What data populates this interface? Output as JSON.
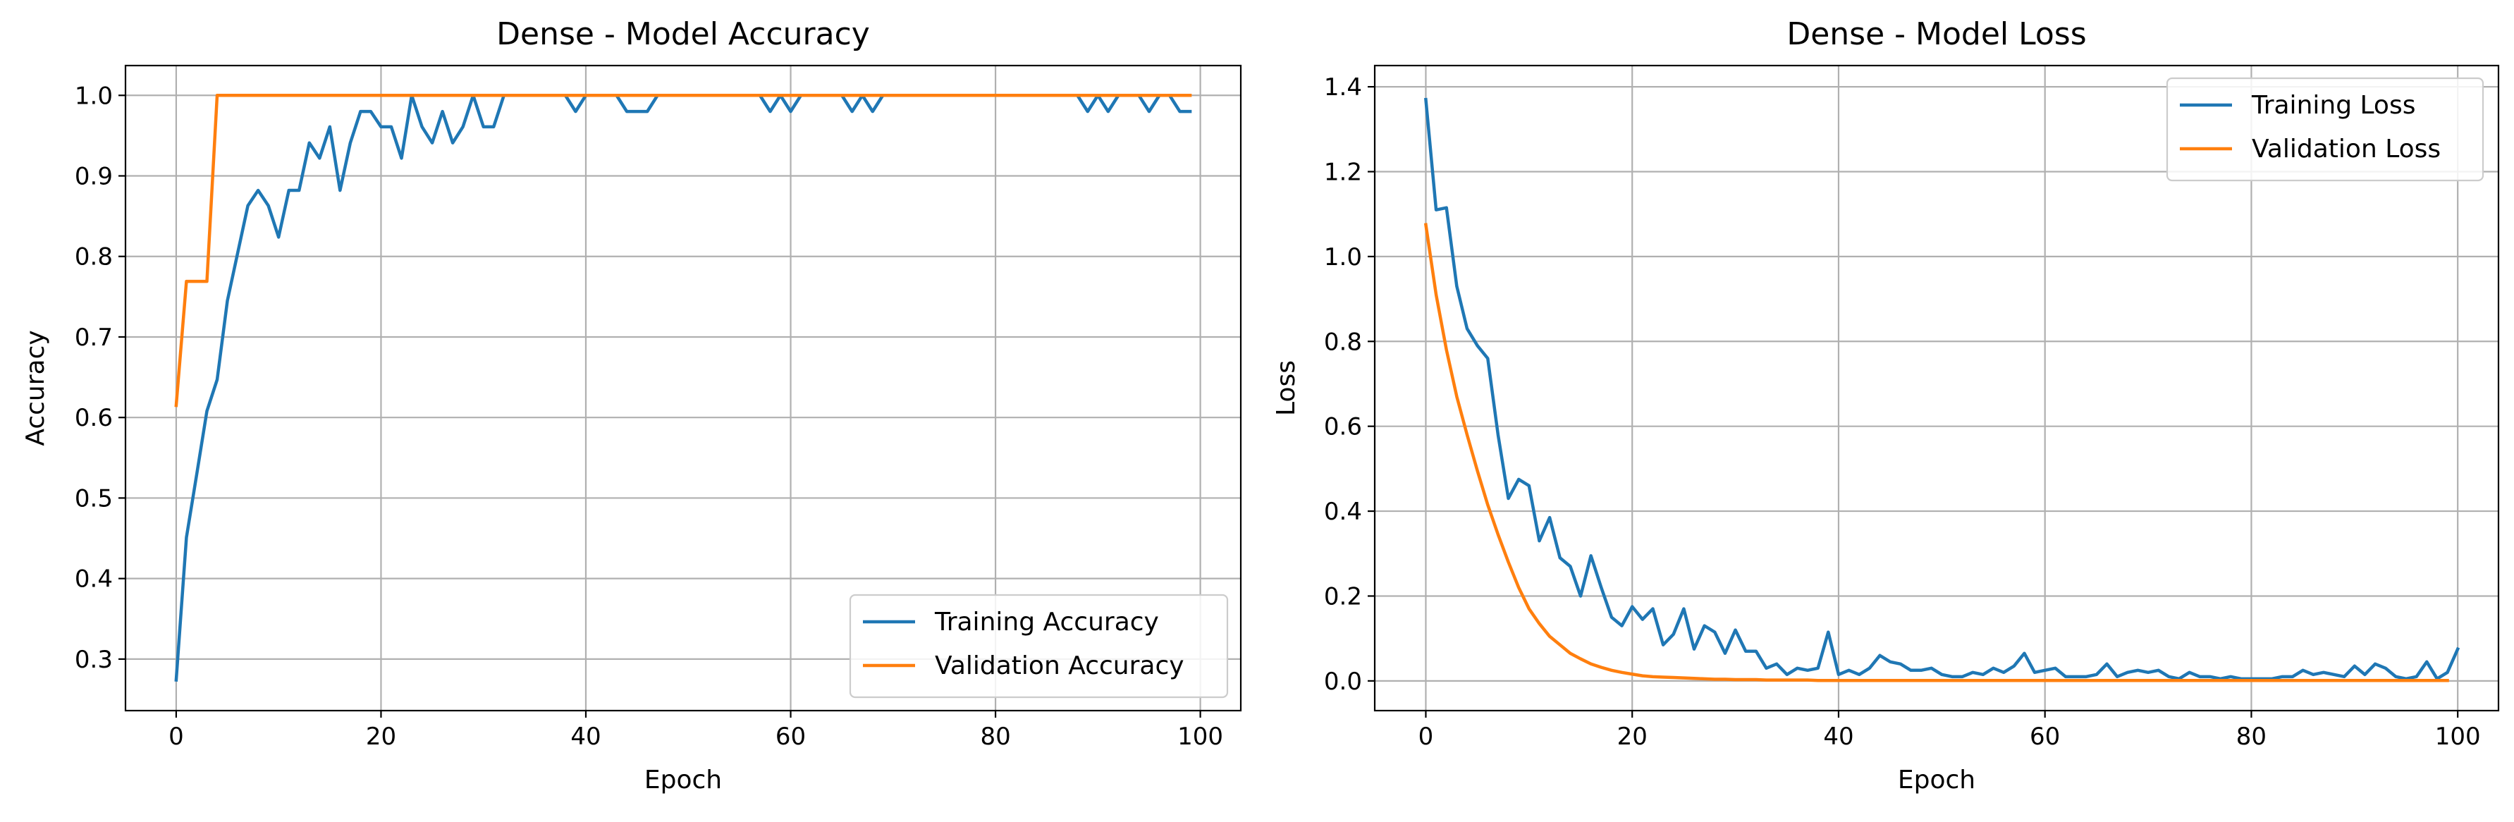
{
  "chart_data": [
    {
      "type": "line",
      "title": "Dense - Model Accuracy",
      "xlabel": "Epoch",
      "ylabel": "Accuracy",
      "xlim": [
        -4.95,
        103.95
      ],
      "ylim": [
        0.236,
        1.037
      ],
      "xticks": [
        0,
        20,
        40,
        60,
        80,
        100
      ],
      "yticks": [
        0.3,
        0.4,
        0.5,
        0.6,
        0.7,
        0.8,
        0.9,
        1.0
      ],
      "xtick_labels": [
        "0",
        "20",
        "40",
        "60",
        "80",
        "100"
      ],
      "ytick_labels": [
        "0.3",
        "0.4",
        "0.5",
        "0.6",
        "0.7",
        "0.8",
        "0.9",
        "1.0"
      ],
      "grid": true,
      "legend": "lower right",
      "series": [
        {
          "name": "Training Accuracy",
          "color": "#1f77b4",
          "values": [
            0.274,
            0.451,
            0.529,
            0.608,
            0.647,
            0.745,
            0.804,
            0.863,
            0.882,
            0.863,
            0.824,
            0.882,
            0.882,
            0.941,
            0.922,
            0.961,
            0.882,
            0.941,
            0.98,
            0.98,
            0.961,
            0.961,
            0.922,
            1.0,
            0.961,
            0.941,
            0.98,
            0.941,
            0.961,
            1.0,
            0.961,
            0.961,
            1.0,
            1.0,
            1.0,
            1.0,
            1.0,
            1.0,
            1.0,
            0.98,
            1.0,
            1.0,
            1.0,
            1.0,
            0.98,
            0.98,
            0.98,
            1.0,
            1.0,
            1.0,
            1.0,
            1.0,
            1.0,
            1.0,
            1.0,
            1.0,
            1.0,
            1.0,
            0.98,
            1.0,
            0.98,
            1.0,
            1.0,
            1.0,
            1.0,
            1.0,
            0.98,
            1.0,
            0.98,
            1.0,
            1.0,
            1.0,
            1.0,
            1.0,
            1.0,
            1.0,
            1.0,
            1.0,
            1.0,
            1.0,
            1.0,
            1.0,
            1.0,
            1.0,
            1.0,
            1.0,
            1.0,
            1.0,
            1.0,
            0.98,
            1.0,
            0.98,
            1.0,
            1.0,
            1.0,
            0.98,
            1.0,
            1.0,
            0.98,
            0.98
          ]
        },
        {
          "name": "Validation Accuracy",
          "color": "#ff7f0e",
          "values": [
            0.615,
            0.769,
            0.769,
            0.769,
            1.0,
            1.0,
            1.0,
            1.0,
            1.0,
            1.0,
            1.0,
            1.0,
            1.0,
            1.0,
            1.0,
            1.0,
            1.0,
            1.0,
            1.0,
            1.0,
            1.0,
            1.0,
            1.0,
            1.0,
            1.0,
            1.0,
            1.0,
            1.0,
            1.0,
            1.0,
            1.0,
            1.0,
            1.0,
            1.0,
            1.0,
            1.0,
            1.0,
            1.0,
            1.0,
            1.0,
            1.0,
            1.0,
            1.0,
            1.0,
            1.0,
            1.0,
            1.0,
            1.0,
            1.0,
            1.0,
            1.0,
            1.0,
            1.0,
            1.0,
            1.0,
            1.0,
            1.0,
            1.0,
            1.0,
            1.0,
            1.0,
            1.0,
            1.0,
            1.0,
            1.0,
            1.0,
            1.0,
            1.0,
            1.0,
            1.0,
            1.0,
            1.0,
            1.0,
            1.0,
            1.0,
            1.0,
            1.0,
            1.0,
            1.0,
            1.0,
            1.0,
            1.0,
            1.0,
            1.0,
            1.0,
            1.0,
            1.0,
            1.0,
            1.0,
            1.0,
            1.0,
            1.0,
            1.0,
            1.0,
            1.0,
            1.0,
            1.0,
            1.0,
            1.0,
            1.0
          ]
        }
      ]
    },
    {
      "type": "line",
      "title": "Dense - Model Loss",
      "xlabel": "Epoch",
      "ylabel": "Loss",
      "xlim": [
        -4.95,
        103.95
      ],
      "ylim": [
        -0.07,
        1.45
      ],
      "xticks": [
        0,
        20,
        40,
        60,
        80,
        100
      ],
      "yticks": [
        0.0,
        0.2,
        0.4,
        0.6,
        0.8,
        1.0,
        1.2,
        1.4
      ],
      "xtick_labels": [
        "0",
        "20",
        "40",
        "60",
        "80",
        "100"
      ],
      "ytick_labels": [
        "0.0",
        "0.2",
        "0.4",
        "0.6",
        "0.8",
        "1.0",
        "1.2",
        "1.4"
      ],
      "grid": true,
      "legend": "upper right",
      "series": [
        {
          "name": "Training Loss",
          "color": "#1f77b4",
          "values": [
            1.37,
            1.11,
            1.115,
            0.93,
            0.83,
            0.79,
            0.76,
            0.58,
            0.43,
            0.475,
            0.46,
            0.33,
            0.385,
            0.29,
            0.27,
            0.2,
            0.295,
            0.22,
            0.15,
            0.13,
            0.175,
            0.145,
            0.17,
            0.085,
            0.11,
            0.17,
            0.075,
            0.13,
            0.115,
            0.065,
            0.12,
            0.07,
            0.07,
            0.03,
            0.04,
            0.015,
            0.03,
            0.025,
            0.03,
            0.115,
            0.015,
            0.025,
            0.015,
            0.03,
            0.06,
            0.045,
            0.04,
            0.025,
            0.025,
            0.03,
            0.015,
            0.01,
            0.01,
            0.02,
            0.015,
            0.03,
            0.02,
            0.035,
            0.065,
            0.02,
            0.025,
            0.03,
            0.01,
            0.01,
            0.01,
            0.015,
            0.04,
            0.01,
            0.02,
            0.025,
            0.02,
            0.025,
            0.01,
            0.005,
            0.02,
            0.01,
            0.01,
            0.005,
            0.01,
            0.005,
            0.005,
            0.005,
            0.005,
            0.01,
            0.01,
            0.025,
            0.015,
            0.02,
            0.015,
            0.01,
            0.035,
            0.015,
            0.04,
            0.03,
            0.01,
            0.005,
            0.01,
            0.045,
            0.005,
            0.02,
            0.075
          ]
        },
        {
          "name": "Validation Loss",
          "color": "#ff7f0e",
          "values": [
            1.075,
            0.91,
            0.78,
            0.67,
            0.58,
            0.495,
            0.415,
            0.345,
            0.28,
            0.22,
            0.17,
            0.135,
            0.105,
            0.085,
            0.065,
            0.052,
            0.04,
            0.032,
            0.025,
            0.02,
            0.016,
            0.012,
            0.01,
            0.009,
            0.008,
            0.007,
            0.006,
            0.005,
            0.004,
            0.004,
            0.003,
            0.003,
            0.003,
            0.002,
            0.002,
            0.002,
            0.002,
            0.002,
            0.001,
            0.001,
            0.001,
            0.001,
            0.001,
            0.001,
            0.001,
            0.001,
            0.001,
            0.001,
            0.001,
            0.001,
            0.001,
            0.001,
            0.001,
            0.001,
            0.001,
            0.001,
            0.001,
            0.001,
            0.001,
            0.001,
            0.001,
            0.001,
            0.001,
            0.001,
            0.001,
            0.001,
            0.001,
            0.001,
            0.001,
            0.001,
            0.001,
            0.001,
            0.001,
            0.001,
            0.001,
            0.001,
            0.001,
            0.001,
            0.001,
            0.001,
            0.001,
            0.001,
            0.001,
            0.001,
            0.001,
            0.001,
            0.001,
            0.001,
            0.001,
            0.001,
            0.001,
            0.001,
            0.001,
            0.001,
            0.001,
            0.001,
            0.001,
            0.001,
            0.001,
            0.001
          ]
        }
      ]
    }
  ]
}
